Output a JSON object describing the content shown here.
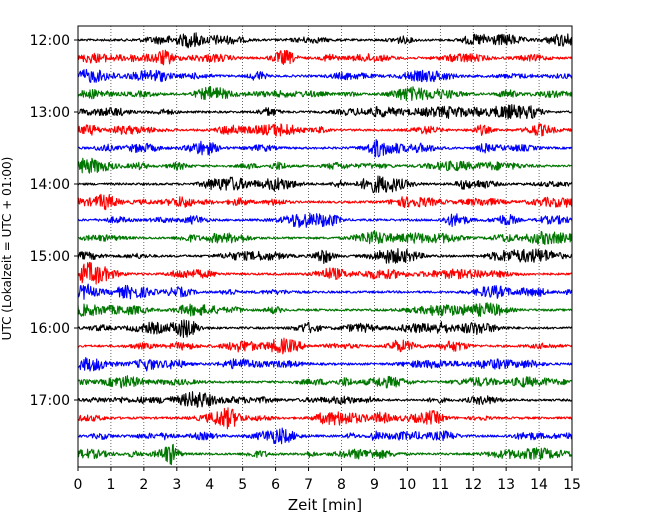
{
  "chart_data": {
    "type": "line",
    "title": "",
    "xlabel": "Zeit  [min]",
    "ylabel": "UTC (Lokalzeit = UTC + 01:00)",
    "xlim": [
      0,
      15
    ],
    "x_ticks": [
      0,
      1,
      2,
      3,
      4,
      5,
      6,
      7,
      8,
      9,
      10,
      11,
      12,
      13,
      14,
      15
    ],
    "x_tick_labels": [
      "0",
      "1",
      "2",
      "3",
      "4",
      "5",
      "6",
      "7",
      "8",
      "9",
      "10",
      "11",
      "12",
      "13",
      "14",
      "15"
    ],
    "y_tick_labels": [
      "12:00",
      "13:00",
      "14:00",
      "15:00",
      "16:00",
      "17:00"
    ],
    "trace_interval_minutes": 15,
    "grid": "vertical dotted at each minute",
    "trace_colors": [
      "#000000",
      "#ff0000",
      "#0000ff",
      "#007700"
    ],
    "traces": [
      {
        "start": "12:00",
        "color": "#000000"
      },
      {
        "start": "12:15",
        "color": "#ff0000"
      },
      {
        "start": "12:30",
        "color": "#0000ff"
      },
      {
        "start": "12:45",
        "color": "#007700"
      },
      {
        "start": "13:00",
        "color": "#000000"
      },
      {
        "start": "13:15",
        "color": "#ff0000"
      },
      {
        "start": "13:30",
        "color": "#0000ff"
      },
      {
        "start": "13:45",
        "color": "#007700"
      },
      {
        "start": "14:00",
        "color": "#000000"
      },
      {
        "start": "14:15",
        "color": "#ff0000"
      },
      {
        "start": "14:30",
        "color": "#0000ff"
      },
      {
        "start": "14:45",
        "color": "#007700"
      },
      {
        "start": "15:00",
        "color": "#000000"
      },
      {
        "start": "15:15",
        "color": "#ff0000"
      },
      {
        "start": "15:30",
        "color": "#0000ff"
      },
      {
        "start": "15:45",
        "color": "#007700"
      },
      {
        "start": "16:00",
        "color": "#000000"
      },
      {
        "start": "16:15",
        "color": "#ff0000"
      },
      {
        "start": "16:30",
        "color": "#0000ff"
      },
      {
        "start": "16:45",
        "color": "#007700"
      },
      {
        "start": "17:00",
        "color": "#000000"
      },
      {
        "start": "17:15",
        "color": "#ff0000"
      },
      {
        "start": "17:30",
        "color": "#0000ff"
      },
      {
        "start": "17:45",
        "color": "#007700"
      }
    ]
  }
}
